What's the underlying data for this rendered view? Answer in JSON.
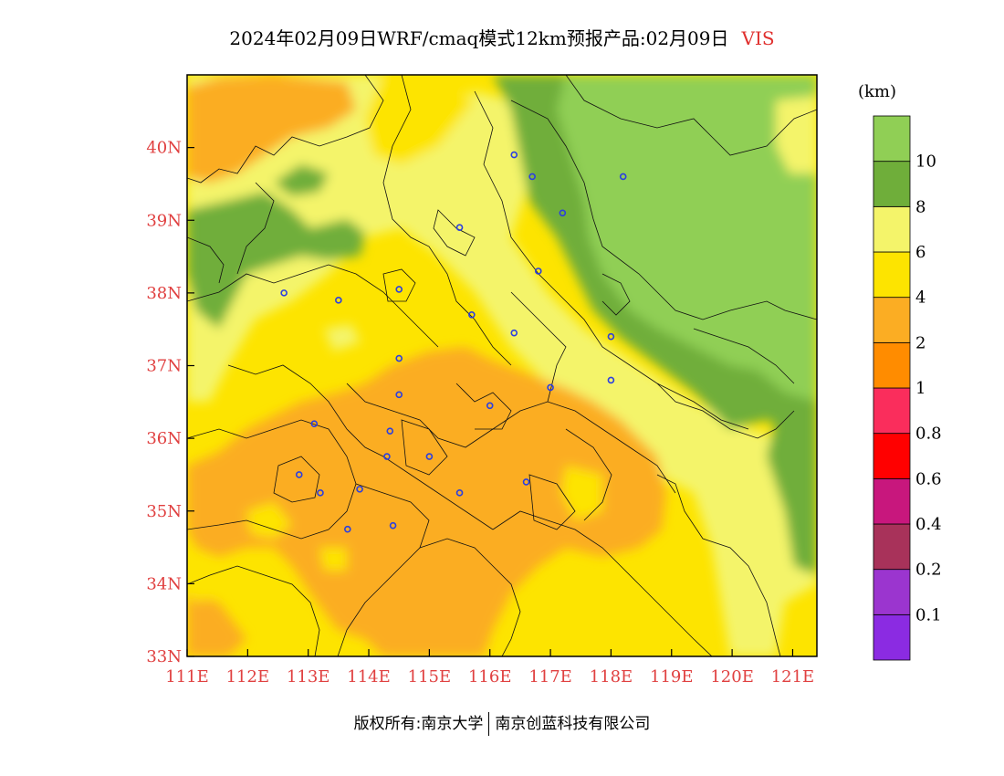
{
  "title": {
    "main": "2024年02月09日WRF/cmaq模式12km预报产品:02月09日",
    "variable": "VIS"
  },
  "legend": {
    "unit": "(km)",
    "colors": [
      "#8b2be2",
      "#9b35cf",
      "#a8325a",
      "#c8177d",
      "#ff0000",
      "#fa2d5c",
      "#ff8c00",
      "#fbad23",
      "#fde400",
      "#f4f46a",
      "#6fae3a",
      "#90cf55"
    ],
    "labels": [
      "0.1",
      "0.2",
      "0.4",
      "0.6",
      "0.8",
      "1",
      "2",
      "4",
      "6",
      "8",
      "10"
    ]
  },
  "axes": {
    "x_ticks": [
      "111E",
      "112E",
      "113E",
      "114E",
      "115E",
      "116E",
      "117E",
      "118E",
      "119E",
      "120E",
      "121E"
    ],
    "y_ticks": [
      "33N",
      "34N",
      "35N",
      "36N",
      "37N",
      "38N",
      "39N",
      "40N"
    ],
    "tick_color": "#e04040"
  },
  "stations": [
    [
      116.4,
      39.9
    ],
    [
      116.7,
      39.6
    ],
    [
      118.2,
      39.6
    ],
    [
      117.2,
      39.1
    ],
    [
      115.5,
      38.9
    ],
    [
      114.5,
      38.05
    ],
    [
      113.5,
      37.9
    ],
    [
      112.6,
      38.0
    ],
    [
      115.7,
      37.7
    ],
    [
      116.4,
      37.45
    ],
    [
      116.8,
      38.3
    ],
    [
      118.0,
      37.4
    ],
    [
      114.5,
      37.1
    ],
    [
      114.5,
      36.6
    ],
    [
      117.0,
      36.7
    ],
    [
      118.0,
      36.8
    ],
    [
      116.0,
      36.45
    ],
    [
      114.35,
      36.1
    ],
    [
      113.1,
      36.2
    ],
    [
      114.3,
      35.75
    ],
    [
      115.0,
      35.75
    ],
    [
      112.85,
      35.5
    ],
    [
      113.2,
      35.25
    ],
    [
      113.85,
      35.3
    ],
    [
      115.5,
      35.25
    ],
    [
      116.6,
      35.4
    ],
    [
      114.4,
      34.8
    ],
    [
      113.65,
      34.75
    ]
  ],
  "footer": {
    "left": "版权所有:南京大学",
    "right": "南京创蓝科技有限公司"
  }
}
